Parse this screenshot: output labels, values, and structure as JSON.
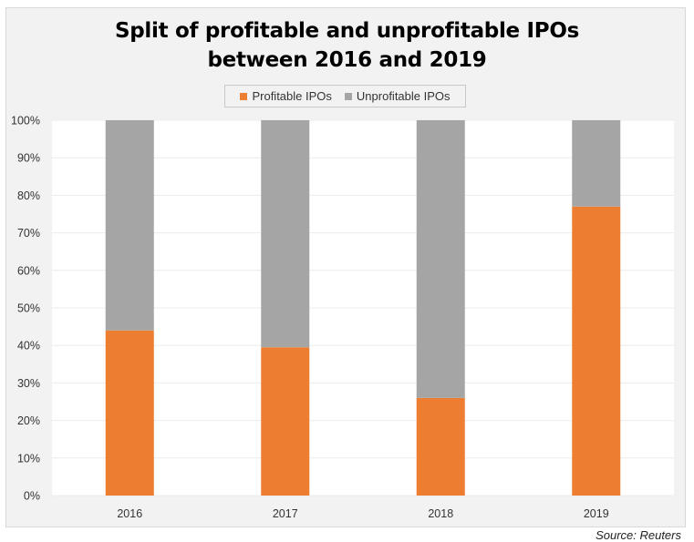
{
  "chart_data": {
    "type": "bar",
    "stacked": true,
    "title": "Split of profitable and unprofitable IPOs between 2016 and 2019",
    "title_lines": [
      "Split of profitable and unprofitable IPOs",
      "between 2016 and 2019"
    ],
    "categories": [
      "2016",
      "2017",
      "2018",
      "2019"
    ],
    "series": [
      {
        "name": "Profitable IPOs",
        "color": "#ed7d31",
        "values": [
          44,
          39.5,
          26,
          77
        ]
      },
      {
        "name": "Unprofitable IPOs",
        "color": "#a5a5a5",
        "values": [
          56,
          60.5,
          74,
          23
        ]
      }
    ],
    "xlabel": "",
    "ylabel": "",
    "ylim": [
      0,
      100
    ],
    "yticks": [
      0,
      10,
      20,
      30,
      40,
      50,
      60,
      70,
      80,
      90,
      100
    ],
    "ytick_labels": [
      "0%",
      "10%",
      "20%",
      "30%",
      "40%",
      "50%",
      "60%",
      "70%",
      "80%",
      "90%",
      "100%"
    ],
    "grid": true,
    "legend_position": "top-center",
    "annotation": "Source: Reuters"
  }
}
